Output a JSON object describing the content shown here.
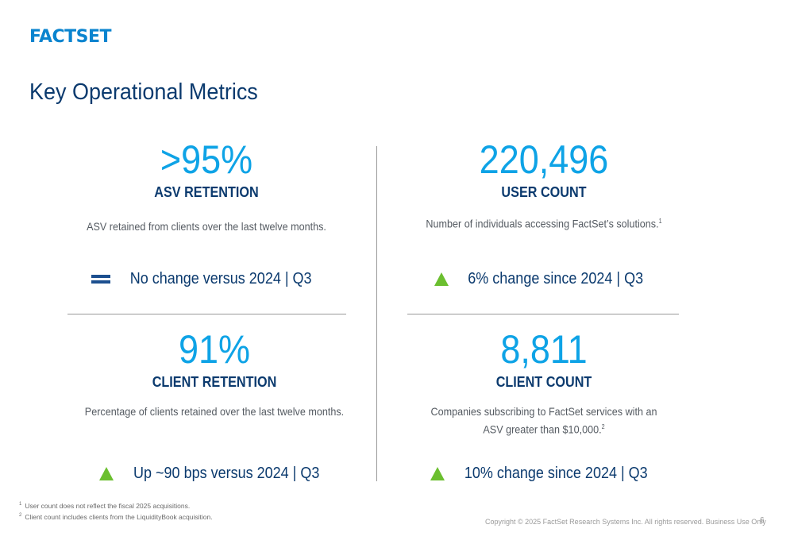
{
  "header": {
    "logo_text": "FACTSET",
    "title": "Key Operational Metrics"
  },
  "metrics": [
    {
      "value": ">95%",
      "label": "ASV RETENTION",
      "description": "ASV retained from clients over the last twelve months.",
      "footnote_ref": "",
      "change_icon": "equal-icon",
      "change_text": "No change versus 2024 | Q3"
    },
    {
      "value": "220,496",
      "label": "USER COUNT",
      "description": "Number of individuals accessing FactSet’s solutions.",
      "footnote_ref": "1",
      "change_icon": "up-triangle-icon",
      "change_text": "6% change since 2024 | Q3"
    },
    {
      "value": "91%",
      "label": "CLIENT RETENTION",
      "description": "Percentage of clients retained over the last twelve  months.",
      "footnote_ref": "",
      "change_icon": "up-triangle-icon",
      "change_text": "Up ~90 bps versus 2024 | Q3"
    },
    {
      "value": "8,811",
      "label": "CLIENT COUNT",
      "description_line1": "Companies subscribing to FactSet services with an",
      "description_line2": "ASV greater than $10,000.",
      "footnote_ref": "2",
      "change_icon": "up-triangle-icon",
      "change_text": "10% change since 2024 | Q3"
    }
  ],
  "footnotes": [
    {
      "num": "1",
      "text": "User count does not reflect the fiscal 2025 acquisitions."
    },
    {
      "num": "2",
      "text": "Client count includes clients from the LiquidityBook acquisition."
    }
  ],
  "footer": {
    "copyright": "Copyright © 2025 FactSet Research Systems Inc. All rights reserved. Business Use Only",
    "page_number": "6"
  },
  "colors": {
    "brand_blue": "#0a84cf",
    "metric_blue": "#0ea3e6",
    "navy": "#0b3a6e",
    "up_green": "#6bbf2f"
  }
}
